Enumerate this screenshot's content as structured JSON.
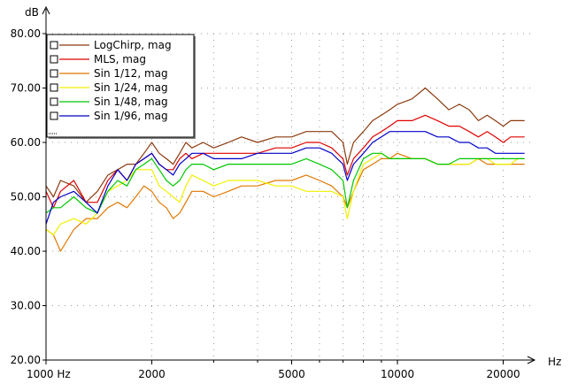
{
  "chart_data": {
    "type": "line",
    "ylabel": "dB",
    "xlabel": "Hz",
    "xscale": "log",
    "xlim": [
      1000,
      24000
    ],
    "ylim": [
      20,
      80
    ],
    "grid": true,
    "legend_placement": "top-left",
    "y_ticks": [
      "80.00",
      "70.00",
      "60.00",
      "50.00",
      "40.00",
      "30.00",
      "20.00"
    ],
    "y_tick_values": [
      80,
      70,
      60,
      50,
      40,
      30,
      20
    ],
    "x_ticks": [
      "1000 Hz",
      "2000",
      "5000",
      "10000",
      "20000"
    ],
    "x_tick_values": [
      1000,
      2000,
      5000,
      10000,
      20000
    ],
    "series": [
      {
        "name": "LogChirp, mag",
        "color": "#8b3a0e",
        "checkbox": true,
        "points": [
          [
            1000,
            52
          ],
          [
            1050,
            50
          ],
          [
            1100,
            53
          ],
          [
            1200,
            52
          ],
          [
            1300,
            49
          ],
          [
            1400,
            51
          ],
          [
            1500,
            54
          ],
          [
            1600,
            55
          ],
          [
            1700,
            56
          ],
          [
            1800,
            56
          ],
          [
            1900,
            58
          ],
          [
            2000,
            60
          ],
          [
            2100,
            58
          ],
          [
            2200,
            57
          ],
          [
            2300,
            56
          ],
          [
            2400,
            58
          ],
          [
            2500,
            60
          ],
          [
            2600,
            59
          ],
          [
            2800,
            60
          ],
          [
            3000,
            59
          ],
          [
            3300,
            60
          ],
          [
            3600,
            61
          ],
          [
            4000,
            60
          ],
          [
            4500,
            61
          ],
          [
            5000,
            61
          ],
          [
            5500,
            62
          ],
          [
            6000,
            62
          ],
          [
            6500,
            62
          ],
          [
            7000,
            60
          ],
          [
            7200,
            56
          ],
          [
            7500,
            60
          ],
          [
            8000,
            62
          ],
          [
            8500,
            64
          ],
          [
            9000,
            65
          ],
          [
            9500,
            66
          ],
          [
            10000,
            67
          ],
          [
            11000,
            68
          ],
          [
            12000,
            70
          ],
          [
            13000,
            68
          ],
          [
            14000,
            66
          ],
          [
            15000,
            67
          ],
          [
            16000,
            66
          ],
          [
            17000,
            64
          ],
          [
            18000,
            65
          ],
          [
            19000,
            64
          ],
          [
            20000,
            63
          ],
          [
            21000,
            64
          ],
          [
            22000,
            64
          ],
          [
            23000,
            64
          ]
        ]
      },
      {
        "name": "MLS, mag",
        "color": "#e00000",
        "checkbox": true,
        "points": [
          [
            1000,
            51
          ],
          [
            1050,
            48
          ],
          [
            1100,
            51
          ],
          [
            1200,
            53
          ],
          [
            1300,
            49
          ],
          [
            1400,
            49
          ],
          [
            1500,
            53
          ],
          [
            1600,
            55
          ],
          [
            1700,
            53
          ],
          [
            1800,
            56
          ],
          [
            1900,
            57
          ],
          [
            2000,
            58
          ],
          [
            2100,
            56
          ],
          [
            2200,
            55
          ],
          [
            2300,
            55
          ],
          [
            2400,
            57
          ],
          [
            2500,
            58
          ],
          [
            2600,
            57
          ],
          [
            2800,
            58
          ],
          [
            3000,
            58
          ],
          [
            3300,
            58
          ],
          [
            3600,
            58
          ],
          [
            4000,
            58
          ],
          [
            4500,
            59
          ],
          [
            5000,
            59
          ],
          [
            5500,
            60
          ],
          [
            6000,
            60
          ],
          [
            6500,
            59
          ],
          [
            7000,
            57
          ],
          [
            7200,
            54
          ],
          [
            7500,
            57
          ],
          [
            8000,
            59
          ],
          [
            8500,
            61
          ],
          [
            9000,
            62
          ],
          [
            9500,
            63
          ],
          [
            10000,
            64
          ],
          [
            11000,
            64
          ],
          [
            12000,
            65
          ],
          [
            13000,
            64
          ],
          [
            14000,
            63
          ],
          [
            15000,
            63
          ],
          [
            16000,
            62
          ],
          [
            17000,
            61
          ],
          [
            18000,
            62
          ],
          [
            19000,
            61
          ],
          [
            20000,
            60
          ],
          [
            21000,
            61
          ],
          [
            22000,
            61
          ],
          [
            23000,
            61
          ]
        ]
      },
      {
        "name": "Sin 1/12, mag",
        "color": "#e07800",
        "checkbox": true,
        "points": [
          [
            1000,
            44
          ],
          [
            1050,
            43
          ],
          [
            1100,
            40
          ],
          [
            1200,
            44
          ],
          [
            1300,
            46
          ],
          [
            1400,
            46
          ],
          [
            1500,
            48
          ],
          [
            1600,
            49
          ],
          [
            1700,
            48
          ],
          [
            1800,
            50
          ],
          [
            1900,
            52
          ],
          [
            2000,
            51
          ],
          [
            2100,
            49
          ],
          [
            2200,
            48
          ],
          [
            2300,
            46
          ],
          [
            2400,
            47
          ],
          [
            2500,
            49
          ],
          [
            2600,
            51
          ],
          [
            2800,
            51
          ],
          [
            3000,
            50
          ],
          [
            3300,
            51
          ],
          [
            3600,
            52
          ],
          [
            4000,
            52
          ],
          [
            4500,
            53
          ],
          [
            5000,
            53
          ],
          [
            5500,
            54
          ],
          [
            6000,
            53
          ],
          [
            6500,
            52
          ],
          [
            7000,
            50
          ],
          [
            7200,
            48
          ],
          [
            7500,
            51
          ],
          [
            8000,
            55
          ],
          [
            8500,
            56
          ],
          [
            9000,
            57
          ],
          [
            9500,
            57
          ],
          [
            10000,
            58
          ],
          [
            11000,
            57
          ],
          [
            12000,
            57
          ],
          [
            13000,
            56
          ],
          [
            14000,
            56
          ],
          [
            15000,
            56
          ],
          [
            16000,
            56
          ],
          [
            17000,
            57
          ],
          [
            18000,
            56
          ],
          [
            19000,
            56
          ],
          [
            20000,
            56
          ],
          [
            21000,
            56
          ],
          [
            22000,
            56
          ],
          [
            23000,
            56
          ]
        ]
      },
      {
        "name": "Sin 1/24, mag",
        "color": "#f0f000",
        "checkbox": true,
        "points": [
          [
            1000,
            44
          ],
          [
            1050,
            43
          ],
          [
            1100,
            45
          ],
          [
            1200,
            46
          ],
          [
            1300,
            45
          ],
          [
            1400,
            47
          ],
          [
            1500,
            51
          ],
          [
            1600,
            52
          ],
          [
            1700,
            53
          ],
          [
            1800,
            55
          ],
          [
            1900,
            55
          ],
          [
            2000,
            55
          ],
          [
            2100,
            52
          ],
          [
            2200,
            51
          ],
          [
            2300,
            50
          ],
          [
            2400,
            49
          ],
          [
            2500,
            52
          ],
          [
            2600,
            54
          ],
          [
            2800,
            53
          ],
          [
            3000,
            52
          ],
          [
            3300,
            53
          ],
          [
            3600,
            53
          ],
          [
            4000,
            53
          ],
          [
            4500,
            52
          ],
          [
            5000,
            52
          ],
          [
            5500,
            51
          ],
          [
            6000,
            51
          ],
          [
            6500,
            51
          ],
          [
            7000,
            50
          ],
          [
            7200,
            46
          ],
          [
            7500,
            51
          ],
          [
            8000,
            56
          ],
          [
            8500,
            57
          ],
          [
            9000,
            58
          ],
          [
            9500,
            57
          ],
          [
            10000,
            57
          ],
          [
            11000,
            57
          ],
          [
            12000,
            57
          ],
          [
            13000,
            56
          ],
          [
            14000,
            56
          ],
          [
            15000,
            56
          ],
          [
            16000,
            56
          ],
          [
            17000,
            57
          ],
          [
            18000,
            57
          ],
          [
            19000,
            56
          ],
          [
            20000,
            56
          ],
          [
            21000,
            56
          ],
          [
            22000,
            57
          ],
          [
            23000,
            57
          ]
        ]
      },
      {
        "name": "Sin 1/48, mag",
        "color": "#00c800",
        "checkbox": true,
        "points": [
          [
            1000,
            47
          ],
          [
            1050,
            48
          ],
          [
            1100,
            48
          ],
          [
            1200,
            50
          ],
          [
            1300,
            48
          ],
          [
            1400,
            47
          ],
          [
            1500,
            51
          ],
          [
            1600,
            53
          ],
          [
            1700,
            52
          ],
          [
            1800,
            55
          ],
          [
            1900,
            56
          ],
          [
            2000,
            57
          ],
          [
            2100,
            55
          ],
          [
            2200,
            53
          ],
          [
            2300,
            52
          ],
          [
            2400,
            53
          ],
          [
            2500,
            55
          ],
          [
            2600,
            56
          ],
          [
            2800,
            56
          ],
          [
            3000,
            55
          ],
          [
            3300,
            56
          ],
          [
            3600,
            56
          ],
          [
            4000,
            56
          ],
          [
            4500,
            56
          ],
          [
            5000,
            56
          ],
          [
            5500,
            57
          ],
          [
            6000,
            56
          ],
          [
            6500,
            55
          ],
          [
            7000,
            53
          ],
          [
            7200,
            48
          ],
          [
            7500,
            53
          ],
          [
            8000,
            57
          ],
          [
            8500,
            58
          ],
          [
            9000,
            58
          ],
          [
            9500,
            57
          ],
          [
            10000,
            57
          ],
          [
            11000,
            57
          ],
          [
            12000,
            57
          ],
          [
            13000,
            56
          ],
          [
            14000,
            56
          ],
          [
            15000,
            57
          ],
          [
            16000,
            57
          ],
          [
            17000,
            57
          ],
          [
            18000,
            57
          ],
          [
            19000,
            57
          ],
          [
            20000,
            57
          ],
          [
            21000,
            57
          ],
          [
            22000,
            57
          ],
          [
            23000,
            57
          ]
        ]
      },
      {
        "name": "Sin 1/96, mag",
        "color": "#0000c8",
        "checkbox": true,
        "points": [
          [
            1000,
            45
          ],
          [
            1050,
            49
          ],
          [
            1100,
            50
          ],
          [
            1200,
            51
          ],
          [
            1300,
            49
          ],
          [
            1400,
            47
          ],
          [
            1500,
            52
          ],
          [
            1600,
            55
          ],
          [
            1700,
            53
          ],
          [
            1800,
            56
          ],
          [
            1900,
            57
          ],
          [
            2000,
            58
          ],
          [
            2100,
            56
          ],
          [
            2200,
            55
          ],
          [
            2300,
            54
          ],
          [
            2400,
            56
          ],
          [
            2500,
            57
          ],
          [
            2600,
            58
          ],
          [
            2800,
            58
          ],
          [
            3000,
            57
          ],
          [
            3300,
            57
          ],
          [
            3600,
            57
          ],
          [
            4000,
            58
          ],
          [
            4500,
            58
          ],
          [
            5000,
            58
          ],
          [
            5500,
            59
          ],
          [
            6000,
            59
          ],
          [
            6500,
            58
          ],
          [
            7000,
            56
          ],
          [
            7200,
            53
          ],
          [
            7500,
            56
          ],
          [
            8000,
            58
          ],
          [
            8500,
            60
          ],
          [
            9000,
            61
          ],
          [
            9500,
            62
          ],
          [
            10000,
            62
          ],
          [
            11000,
            62
          ],
          [
            12000,
            62
          ],
          [
            13000,
            61
          ],
          [
            14000,
            61
          ],
          [
            15000,
            60
          ],
          [
            16000,
            60
          ],
          [
            17000,
            59
          ],
          [
            18000,
            59
          ],
          [
            19000,
            58
          ],
          [
            20000,
            58
          ],
          [
            21000,
            58
          ],
          [
            22000,
            58
          ],
          [
            23000,
            58
          ]
        ]
      }
    ]
  }
}
